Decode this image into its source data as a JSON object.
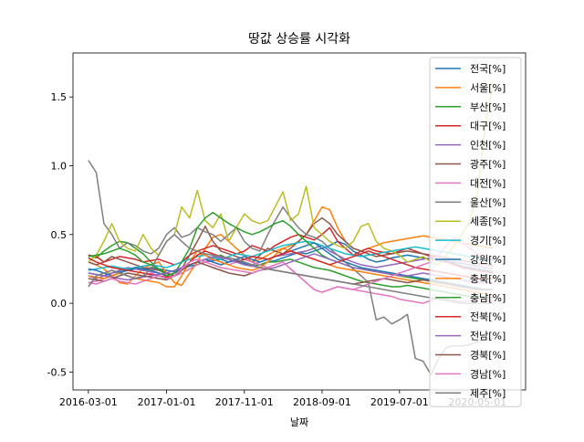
{
  "chart_data": {
    "type": "line",
    "title": "땅값 상승률 시각화",
    "xlabel": "날짜",
    "ylabel": "",
    "xlim": [
      "2016-01-01",
      "2020-11-05"
    ],
    "ylim": [
      -0.63,
      1.82
    ],
    "x_ticks": [
      "2016-03-01",
      "2017-01-01",
      "2017-11-01",
      "2018-09-01",
      "2019-07-01",
      "2020-05-01"
    ],
    "y_ticks": [
      -0.5,
      0.0,
      0.5,
      1.0,
      1.5
    ],
    "y_tick_labels": [
      "-0.5",
      "0.0",
      "0.5",
      "1.0",
      "1.5"
    ],
    "legend_position": "upper right",
    "grid": false,
    "x_start": "2016-03",
    "x_step": "month",
    "series": [
      {
        "name": "전국[%]",
        "color": "#1f77b4",
        "values": [
          0.22,
          0.21,
          0.2,
          0.22,
          0.23,
          0.24,
          0.25,
          0.24,
          0.26,
          0.25,
          0.24,
          0.23,
          0.25,
          0.27,
          0.28,
          0.3,
          0.31,
          0.32,
          0.3,
          0.31,
          0.29,
          0.27,
          0.28,
          0.3,
          0.31,
          0.33,
          0.35,
          0.37,
          0.36,
          0.38,
          0.4,
          0.42,
          0.45,
          0.43,
          0.38,
          0.35,
          0.32,
          0.3,
          0.31,
          0.33,
          0.34,
          0.35,
          0.34,
          0.33,
          0.32,
          0.31,
          0.3,
          0.29,
          0.27,
          0.26,
          0.25,
          0.24,
          0.23
        ]
      },
      {
        "name": "서울[%]",
        "color": "#ff7f0e",
        "values": [
          0.3,
          0.28,
          0.25,
          0.2,
          0.15,
          0.14,
          0.2,
          0.25,
          0.28,
          0.3,
          0.22,
          0.15,
          0.13,
          0.22,
          0.3,
          0.4,
          0.48,
          0.5,
          0.45,
          0.4,
          0.35,
          0.3,
          0.32,
          0.35,
          0.38,
          0.4,
          0.42,
          0.45,
          0.5,
          0.6,
          0.7,
          0.68,
          0.55,
          0.45,
          0.4,
          0.38,
          0.4,
          0.42,
          0.44,
          0.45,
          0.46,
          0.47,
          0.48,
          0.49,
          0.48,
          0.47,
          0.46,
          0.45,
          0.44,
          0.43,
          0.42,
          0.41,
          0.4
        ]
      },
      {
        "name": "부산[%]",
        "color": "#2ca02c",
        "values": [
          0.35,
          0.33,
          0.38,
          0.42,
          0.45,
          0.44,
          0.4,
          0.36,
          0.3,
          0.25,
          0.22,
          0.2,
          0.22,
          0.25,
          0.28,
          0.3,
          0.33,
          0.35,
          0.32,
          0.3,
          0.28,
          0.27,
          0.28,
          0.3,
          0.3,
          0.31,
          0.32,
          0.3,
          0.28,
          0.26,
          0.25,
          0.24,
          0.22,
          0.2,
          0.18,
          0.16,
          0.15,
          0.14,
          0.13,
          0.12,
          0.12,
          0.13,
          0.12,
          0.11,
          0.1,
          0.09,
          0.08,
          0.07,
          0.06,
          0.05,
          0.05,
          0.04,
          0.04
        ]
      },
      {
        "name": "대구[%]",
        "color": "#d62728",
        "values": [
          0.35,
          0.34,
          0.3,
          0.32,
          0.34,
          0.33,
          0.32,
          0.3,
          0.31,
          0.32,
          0.3,
          0.28,
          0.3,
          0.35,
          0.38,
          0.4,
          0.42,
          0.4,
          0.38,
          0.36,
          0.38,
          0.42,
          0.4,
          0.38,
          0.42,
          0.45,
          0.48,
          0.5,
          0.48,
          0.46,
          0.5,
          0.55,
          0.45,
          0.4,
          0.35,
          0.38,
          0.4,
          0.38,
          0.37,
          0.36,
          0.38,
          0.4,
          0.38,
          0.36,
          0.34,
          0.32,
          0.3,
          0.28,
          0.26,
          0.25,
          0.24,
          0.23,
          0.22
        ]
      },
      {
        "name": "인천[%]",
        "color": "#9467bd",
        "values": [
          0.2,
          0.18,
          0.2,
          0.22,
          0.24,
          0.26,
          0.25,
          0.24,
          0.23,
          0.22,
          0.2,
          0.22,
          0.25,
          0.28,
          0.3,
          0.32,
          0.3,
          0.28,
          0.3,
          0.32,
          0.3,
          0.28,
          0.3,
          0.32,
          0.34,
          0.35,
          0.36,
          0.37,
          0.38,
          0.4,
          0.42,
          0.38,
          0.35,
          0.32,
          0.3,
          0.28,
          0.27,
          0.26,
          0.27,
          0.28,
          0.29,
          0.3,
          0.31,
          0.32,
          0.33,
          0.32,
          0.31,
          0.3,
          0.29,
          0.28,
          0.27,
          0.26,
          0.25
        ]
      },
      {
        "name": "광주[%]",
        "color": "#8c564b",
        "values": [
          0.3,
          0.28,
          0.3,
          0.34,
          0.32,
          0.3,
          0.28,
          0.26,
          0.25,
          0.24,
          0.22,
          0.2,
          0.25,
          0.35,
          0.45,
          0.56,
          0.45,
          0.38,
          0.36,
          0.34,
          0.32,
          0.3,
          0.35,
          0.4,
          0.38,
          0.36,
          0.4,
          0.45,
          0.5,
          0.58,
          0.62,
          0.58,
          0.5,
          0.45,
          0.4,
          0.38,
          0.36,
          0.34,
          0.35,
          0.36,
          0.37,
          0.38,
          0.37,
          0.36,
          0.35,
          0.34,
          0.33,
          0.32,
          0.31,
          0.3,
          0.29,
          0.28,
          0.27
        ]
      },
      {
        "name": "대전[%]",
        "color": "#e377c2",
        "values": [
          0.15,
          0.16,
          0.18,
          0.2,
          0.22,
          0.2,
          0.18,
          0.2,
          0.22,
          0.2,
          0.18,
          0.2,
          0.22,
          0.25,
          0.28,
          0.3,
          0.32,
          0.3,
          0.28,
          0.3,
          0.32,
          0.3,
          0.28,
          0.26,
          0.28,
          0.3,
          0.25,
          0.2,
          0.15,
          0.1,
          0.08,
          0.1,
          0.12,
          0.11,
          0.1,
          0.09,
          0.08,
          0.07,
          0.06,
          0.05,
          0.03,
          0.02,
          0.01,
          0.0,
          0.02,
          0.04,
          0.03,
          0.02,
          0.01,
          0.02,
          0.03,
          0.02,
          0.02
        ]
      },
      {
        "name": "울산[%]",
        "color": "#7f7f7f",
        "values": [
          1.04,
          0.95,
          0.58,
          0.5,
          0.4,
          0.44,
          0.42,
          0.38,
          0.36,
          0.4,
          0.5,
          0.55,
          0.48,
          0.5,
          0.55,
          0.52,
          0.5,
          0.45,
          0.5,
          0.55,
          0.45,
          0.4,
          0.38,
          0.5,
          0.6,
          0.7,
          0.62,
          0.55,
          0.5,
          0.48,
          0.45,
          0.4,
          0.35,
          0.3,
          0.25,
          0.2,
          0.15,
          -0.12,
          -0.1,
          -0.15,
          -0.12,
          -0.08,
          -0.4,
          -0.42,
          -0.52,
          -0.4,
          -0.32,
          -0.31,
          -0.31,
          -0.3,
          -0.28,
          -0.26,
          -0.25
        ]
      },
      {
        "name": "세종[%]",
        "color": "#bcbd22",
        "values": [
          0.3,
          0.35,
          0.45,
          0.58,
          0.45,
          0.4,
          0.38,
          0.5,
          0.4,
          0.35,
          0.45,
          0.5,
          0.7,
          0.62,
          0.82,
          0.6,
          0.55,
          0.65,
          0.45,
          0.55,
          0.65,
          0.6,
          0.58,
          0.6,
          0.7,
          0.81,
          0.6,
          0.65,
          0.85,
          0.55,
          0.5,
          0.45,
          0.42,
          0.4,
          0.45,
          0.56,
          0.58,
          0.45,
          0.4,
          0.38,
          0.35,
          0.3,
          0.32,
          0.34,
          0.3,
          0.28,
          0.35,
          0.42,
          0.5,
          0.6,
          0.8,
          1.3,
          1.6
        ]
      },
      {
        "name": "경기[%]",
        "color": "#17becf",
        "values": [
          0.24,
          0.25,
          0.26,
          0.27,
          0.26,
          0.25,
          0.26,
          0.27,
          0.28,
          0.27,
          0.26,
          0.28,
          0.3,
          0.32,
          0.34,
          0.35,
          0.33,
          0.32,
          0.34,
          0.36,
          0.35,
          0.34,
          0.36,
          0.38,
          0.4,
          0.42,
          0.43,
          0.44,
          0.45,
          0.44,
          0.42,
          0.4,
          0.38,
          0.36,
          0.35,
          0.34,
          0.35,
          0.36,
          0.37,
          0.38,
          0.39,
          0.4,
          0.41,
          0.4,
          0.39,
          0.38,
          0.37,
          0.36,
          0.35,
          0.34,
          0.33,
          0.32,
          0.31
        ]
      },
      {
        "name": "강원[%]",
        "color": "#1f77b4",
        "values": [
          0.25,
          0.24,
          0.22,
          0.2,
          0.22,
          0.24,
          0.26,
          0.25,
          0.24,
          0.22,
          0.2,
          0.22,
          0.25,
          0.28,
          0.3,
          0.32,
          0.3,
          0.28,
          0.3,
          0.32,
          0.34,
          0.32,
          0.3,
          0.32,
          0.34,
          0.36,
          0.38,
          0.4,
          0.42,
          0.44,
          0.4,
          0.36,
          0.32,
          0.3,
          0.28,
          0.26,
          0.25,
          0.24,
          0.23,
          0.22,
          0.21,
          0.2,
          0.19,
          0.18,
          0.17,
          0.16,
          0.15,
          0.14,
          0.13,
          0.12,
          0.11,
          0.1,
          0.1
        ]
      },
      {
        "name": "충북[%]",
        "color": "#ff7f0e",
        "values": [
          0.2,
          0.19,
          0.18,
          0.2,
          0.22,
          0.2,
          0.18,
          0.17,
          0.16,
          0.15,
          0.12,
          0.12,
          0.2,
          0.3,
          0.38,
          0.35,
          0.32,
          0.3,
          0.28,
          0.26,
          0.25,
          0.24,
          0.26,
          0.3,
          0.35,
          0.4,
          0.38,
          0.36,
          0.34,
          0.32,
          0.3,
          0.28,
          0.26,
          0.25,
          0.24,
          0.23,
          0.22,
          0.21,
          0.2,
          0.19,
          0.18,
          0.17,
          0.16,
          0.15,
          0.14,
          0.13,
          0.12,
          0.11,
          0.1,
          0.09,
          0.08,
          0.07,
          0.06
        ]
      },
      {
        "name": "충남[%]",
        "color": "#2ca02c",
        "values": [
          0.34,
          0.35,
          0.36,
          0.38,
          0.4,
          0.38,
          0.35,
          0.3,
          0.28,
          0.25,
          0.2,
          0.22,
          0.3,
          0.4,
          0.55,
          0.62,
          0.66,
          0.62,
          0.58,
          0.55,
          0.52,
          0.5,
          0.52,
          0.55,
          0.58,
          0.6,
          0.56,
          0.5,
          0.45,
          0.4,
          0.35,
          0.32,
          0.3,
          0.28,
          0.26,
          0.25,
          0.24,
          0.23,
          0.22,
          0.21,
          0.2,
          0.19,
          0.18,
          0.17,
          0.16,
          0.15,
          0.14,
          0.13,
          0.12,
          0.11,
          0.1,
          0.1,
          0.1
        ]
      },
      {
        "name": "전북[%]",
        "color": "#d62728",
        "values": [
          0.33,
          0.3,
          0.28,
          0.26,
          0.25,
          0.24,
          0.23,
          0.22,
          0.21,
          0.2,
          0.19,
          0.2,
          0.25,
          0.3,
          0.35,
          0.38,
          0.36,
          0.34,
          0.32,
          0.3,
          0.32,
          0.34,
          0.33,
          0.32,
          0.34,
          0.36,
          0.38,
          0.36,
          0.34,
          0.32,
          0.3,
          0.28,
          0.3,
          0.32,
          0.34,
          0.36,
          0.38,
          0.36,
          0.34,
          0.32,
          0.3,
          0.28,
          0.26,
          0.25,
          0.24,
          0.23,
          0.22,
          0.21,
          0.2,
          0.19,
          0.18,
          0.18,
          0.18
        ]
      },
      {
        "name": "전남[%]",
        "color": "#9467bd",
        "values": [
          0.22,
          0.21,
          0.2,
          0.19,
          0.18,
          0.17,
          0.18,
          0.19,
          0.2,
          0.21,
          0.22,
          0.24,
          0.26,
          0.28,
          0.3,
          0.32,
          0.34,
          0.33,
          0.32,
          0.3,
          0.28,
          0.27,
          0.26,
          0.25,
          0.26,
          0.28,
          0.3,
          0.32,
          0.34,
          0.36,
          0.34,
          0.32,
          0.3,
          0.28,
          0.26,
          0.25,
          0.24,
          0.23,
          0.22,
          0.21,
          0.2,
          0.2,
          0.21,
          0.22,
          0.21,
          0.2,
          0.19,
          0.18,
          0.17,
          0.16,
          0.15,
          0.15,
          0.15
        ]
      },
      {
        "name": "경북[%]",
        "color": "#8c564b",
        "values": [
          0.18,
          0.17,
          0.16,
          0.18,
          0.2,
          0.22,
          0.21,
          0.2,
          0.19,
          0.18,
          0.17,
          0.2,
          0.24,
          0.28,
          0.3,
          0.28,
          0.26,
          0.24,
          0.22,
          0.21,
          0.2,
          0.22,
          0.24,
          0.25,
          0.24,
          0.23,
          0.22,
          0.21,
          0.2,
          0.19,
          0.18,
          0.17,
          0.16,
          0.15,
          0.14,
          0.15,
          0.16,
          0.17,
          0.18,
          0.17,
          0.16,
          0.15,
          0.16,
          0.17,
          0.16,
          0.15,
          0.14,
          0.13,
          0.12,
          0.11,
          0.1,
          0.1,
          0.1
        ]
      },
      {
        "name": "경남[%]",
        "color": "#e377c2",
        "values": [
          0.15,
          0.14,
          0.16,
          0.18,
          0.16,
          0.15,
          0.14,
          0.16,
          0.18,
          0.2,
          0.18,
          0.2,
          0.25,
          0.3,
          0.32,
          0.3,
          0.28,
          0.26,
          0.25,
          0.24,
          0.23,
          0.22,
          0.24,
          0.26,
          0.28,
          0.3,
          0.25,
          0.2,
          0.15,
          0.1,
          0.08,
          0.1,
          0.12,
          0.11,
          0.1,
          0.12,
          0.14,
          0.16,
          0.18,
          0.2,
          0.22,
          0.24,
          0.26,
          0.28,
          0.3,
          0.35,
          0.42,
          0.48,
          0.44,
          0.4,
          0.36,
          0.33,
          0.32
        ]
      },
      {
        "name": "제주[%]",
        "color": "#7f7f7f",
        "values": [
          0.12,
          0.2,
          0.22,
          0.24,
          0.22,
          0.2,
          0.18,
          0.2,
          0.25,
          0.35,
          0.45,
          0.5,
          0.45,
          0.4,
          0.38,
          0.36,
          0.35,
          0.34,
          0.33,
          0.32,
          0.3,
          0.28,
          0.26,
          0.25,
          0.24,
          0.23,
          0.22,
          0.21,
          0.2,
          0.19,
          0.18,
          0.17,
          0.16,
          0.15,
          0.14,
          0.13,
          0.12,
          0.11,
          0.1,
          0.09,
          0.08,
          0.07,
          0.06,
          0.05,
          0.04,
          0.03,
          0.02,
          0.01,
          0.0,
          0.0,
          0.0,
          0.0,
          0.0
        ]
      }
    ]
  }
}
